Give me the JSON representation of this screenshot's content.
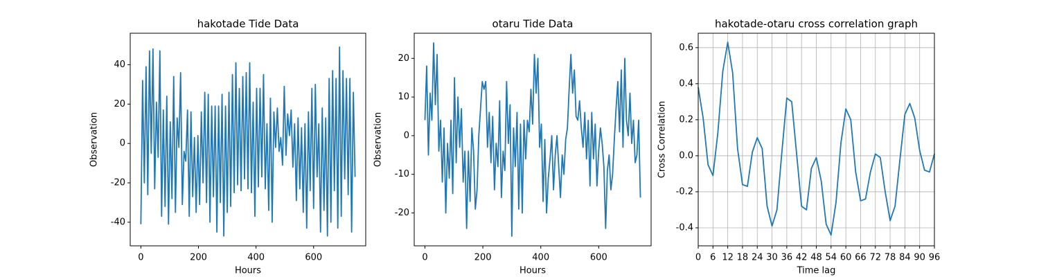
{
  "chart_data": [
    {
      "type": "line",
      "title": "hakotade Tide Data",
      "x_label": "Hours",
      "y_label": "Observation",
      "color": "#1f77b4",
      "xlim": [
        -37,
        781
      ],
      "ylim": [
        -52,
        56
      ],
      "xticks": [
        0,
        200,
        400,
        600
      ],
      "yticks": [
        -40,
        -20,
        0,
        20,
        40
      ],
      "grid": false,
      "x": [
        0,
        6,
        12,
        18,
        24,
        30,
        36,
        42,
        48,
        54,
        60,
        66,
        72,
        78,
        84,
        90,
        96,
        102,
        108,
        114,
        120,
        126,
        132,
        138,
        144,
        150,
        156,
        162,
        168,
        174,
        180,
        186,
        192,
        198,
        204,
        210,
        216,
        222,
        228,
        234,
        240,
        246,
        252,
        258,
        264,
        270,
        276,
        282,
        288,
        294,
        300,
        306,
        312,
        318,
        324,
        330,
        336,
        342,
        348,
        354,
        360,
        366,
        372,
        378,
        384,
        390,
        396,
        402,
        408,
        414,
        420,
        426,
        432,
        438,
        444,
        450,
        456,
        462,
        468,
        474,
        480,
        486,
        492,
        498,
        504,
        510,
        516,
        522,
        528,
        534,
        540,
        546,
        552,
        558,
        564,
        570,
        576,
        582,
        588,
        594,
        600,
        606,
        612,
        618,
        624,
        630,
        636,
        642,
        648,
        654,
        660,
        666,
        672,
        678,
        684,
        690,
        696,
        702,
        708,
        714,
        720,
        726,
        732,
        738,
        744
      ],
      "values": [
        -41,
        32,
        -20,
        39,
        -26,
        47,
        -5,
        48,
        -23,
        21,
        -7,
        47,
        -37,
        17,
        -32,
        24,
        -41,
        11,
        -28,
        34,
        -35,
        13,
        -2,
        36,
        -31,
        -4,
        -9,
        17,
        -37,
        16,
        -27,
        3,
        -35,
        4,
        -31,
        16,
        -20,
        26,
        -30,
        25,
        -40,
        19,
        -27,
        19,
        -45,
        19,
        -30,
        25,
        -47,
        19,
        -35,
        26,
        -32,
        35,
        -25,
        41,
        -21,
        28,
        -24,
        34,
        -18,
        36,
        -23,
        41,
        -25,
        21,
        -37,
        28,
        -22,
        28,
        -17,
        35,
        -23,
        10,
        -34,
        23,
        -40,
        16,
        -2,
        18,
        -4,
        3,
        -11,
        29,
        -6,
        15,
        4,
        17,
        -12,
        10,
        -29,
        13,
        -23,
        8,
        -35,
        10,
        -43,
        16,
        -24,
        28,
        -33,
        30,
        -17,
        10,
        -45,
        18,
        -34,
        13,
        -47,
        33,
        -40,
        37,
        -24,
        33,
        -43,
        49,
        -37,
        37,
        -18,
        33,
        -26,
        33,
        -45,
        26,
        -17
      ]
    },
    {
      "type": "line",
      "title": "otaru Tide Data",
      "x_label": "Hours",
      "y_label": "Observation",
      "color": "#1f77b4",
      "xlim": [
        -37,
        781
      ],
      "ylim": [
        -28.5,
        26.5
      ],
      "xticks": [
        0,
        200,
        400,
        600
      ],
      "yticks": [
        -20,
        -10,
        0,
        10,
        20
      ],
      "grid": false,
      "x": [
        0,
        6,
        12,
        18,
        24,
        30,
        36,
        42,
        48,
        54,
        60,
        66,
        72,
        78,
        84,
        90,
        96,
        102,
        108,
        114,
        120,
        126,
        132,
        138,
        144,
        150,
        156,
        162,
        168,
        174,
        180,
        186,
        192,
        198,
        204,
        210,
        216,
        222,
        228,
        234,
        240,
        246,
        252,
        258,
        264,
        270,
        276,
        282,
        288,
        294,
        300,
        306,
        312,
        318,
        324,
        330,
        336,
        342,
        348,
        354,
        360,
        366,
        372,
        378,
        384,
        390,
        396,
        402,
        408,
        414,
        420,
        426,
        432,
        438,
        444,
        450,
        456,
        462,
        468,
        474,
        480,
        486,
        492,
        498,
        504,
        510,
        516,
        522,
        528,
        534,
        540,
        546,
        552,
        558,
        564,
        570,
        576,
        582,
        588,
        594,
        600,
        606,
        612,
        618,
        624,
        630,
        636,
        642,
        648,
        654,
        660,
        666,
        672,
        678,
        684,
        690,
        696,
        702,
        708,
        714,
        720,
        726,
        732,
        738,
        744
      ],
      "values": [
        4,
        18,
        -5,
        11,
        4,
        24,
        8,
        21,
        -4,
        4,
        -12,
        2,
        -20,
        -2,
        -11,
        4,
        -15,
        15,
        -7,
        10,
        -3,
        7,
        -12,
        -4,
        -24,
        -4,
        -17,
        2,
        -4,
        -19,
        -14,
        0,
        7,
        14,
        12,
        14,
        -3,
        6,
        -7,
        5,
        -14,
        -2,
        -8,
        9,
        -16,
        -4,
        -9,
        14,
        -2,
        8,
        -26,
        2,
        -8,
        6,
        -19,
        3,
        -20,
        4,
        -6,
        4,
        1,
        12,
        3,
        21,
        11,
        20,
        -3,
        3,
        -17,
        -1,
        -20,
        -11,
        -6,
        0,
        -14,
        -5,
        0,
        -8,
        -16,
        -5,
        -10,
        -1,
        2,
        12,
        21,
        11,
        17,
        5,
        4,
        9,
        2,
        -3,
        6,
        -6,
        4,
        -13,
        6,
        -6,
        3,
        -13,
        -4,
        2,
        -2,
        -8,
        -24,
        -9,
        -5,
        -14,
        -10,
        -1,
        7,
        14,
        1,
        17,
        -3,
        20,
        4,
        0,
        11,
        -2,
        4,
        -7,
        -5,
        4,
        -16
      ]
    },
    {
      "type": "line",
      "title": "hakotade-otaru cross correlation graph",
      "x_label": "Time lag",
      "y_label": "Cross Correlation",
      "color": "#1f77b4",
      "xlim": [
        0,
        96
      ],
      "ylim": [
        -0.5,
        0.68
      ],
      "xticks": [
        0,
        6,
        12,
        18,
        24,
        30,
        36,
        42,
        48,
        54,
        60,
        66,
        72,
        78,
        84,
        90,
        96
      ],
      "yticks": [
        -0.4,
        -0.2,
        {
          "value": 0,
          "label": "0.0"
        },
        0.2,
        0.4,
        0.6
      ],
      "grid": true,
      "x": [
        0,
        2,
        4,
        6,
        8,
        10,
        12,
        14,
        16,
        18,
        20,
        22,
        24,
        26,
        28,
        30,
        32,
        34,
        36,
        38,
        40,
        42,
        44,
        46,
        48,
        50,
        52,
        54,
        56,
        58,
        60,
        62,
        64,
        66,
        68,
        70,
        72,
        74,
        76,
        78,
        80,
        82,
        84,
        86,
        88,
        90,
        92,
        94,
        96
      ],
      "values": [
        0.38,
        0.21,
        -0.05,
        -0.11,
        0.13,
        0.47,
        0.63,
        0.46,
        0.04,
        -0.16,
        -0.17,
        0.02,
        0.1,
        0.04,
        -0.28,
        -0.39,
        -0.3,
        0.02,
        0.32,
        0.3,
        0.01,
        -0.28,
        -0.3,
        -0.07,
        -0.01,
        -0.14,
        -0.38,
        -0.44,
        -0.26,
        0.07,
        0.26,
        0.2,
        -0.09,
        -0.25,
        -0.24,
        -0.09,
        0.01,
        -0.01,
        -0.2,
        -0.36,
        -0.28,
        -0.02,
        0.23,
        0.29,
        0.21,
        0.03,
        -0.08,
        -0.09,
        0.01
      ]
    }
  ]
}
